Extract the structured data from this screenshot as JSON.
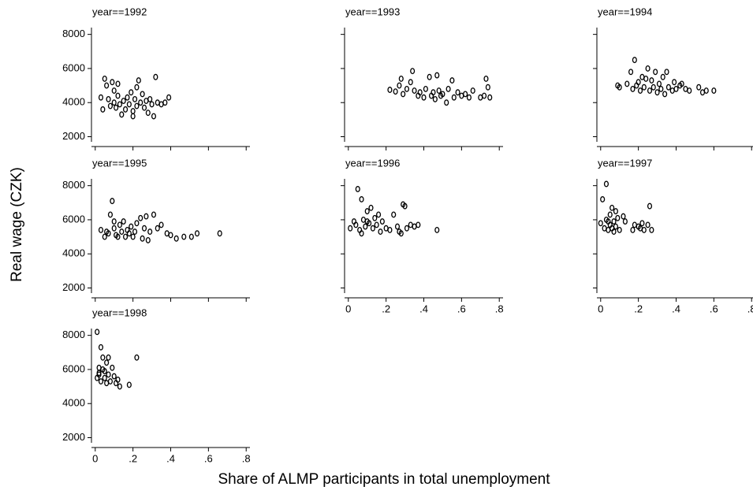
{
  "ylabel": "Real wage (CZK)",
  "xlabel": "Share of ALMP participants in total unemployment",
  "chart_data": [
    {
      "type": "scatter",
      "title": "year==1992",
      "xlim": [
        -0.02,
        0.82
      ],
      "ylim": [
        1700,
        8400
      ],
      "yticks": [
        2000,
        4000,
        6000,
        8000
      ],
      "x": [
        0.03,
        0.04,
        0.05,
        0.06,
        0.07,
        0.08,
        0.09,
        0.1,
        0.1,
        0.11,
        0.12,
        0.13,
        0.14,
        0.15,
        0.16,
        0.17,
        0.18,
        0.19,
        0.2,
        0.21,
        0.22,
        0.23,
        0.24,
        0.25,
        0.26,
        0.27,
        0.28,
        0.29,
        0.3,
        0.31,
        0.32,
        0.33,
        0.35,
        0.37,
        0.39,
        0.12,
        0.2,
        0.22
      ],
      "y": [
        4300,
        3600,
        5400,
        5000,
        4200,
        3800,
        5200,
        4700,
        4000,
        3700,
        4400,
        3900,
        3300,
        4100,
        3600,
        4300,
        3900,
        4600,
        3500,
        4200,
        3800,
        5300,
        4000,
        4500,
        3700,
        4100,
        3400,
        4200,
        3900,
        3200,
        5500,
        4000,
        3900,
        4000,
        4300,
        5100,
        3200,
        4900
      ]
    },
    {
      "type": "scatter",
      "title": "year==1993",
      "xlim": [
        -0.02,
        0.82
      ],
      "ylim": [
        1700,
        8400
      ],
      "x": [
        0.22,
        0.25,
        0.27,
        0.28,
        0.29,
        0.31,
        0.33,
        0.34,
        0.35,
        0.37,
        0.38,
        0.4,
        0.41,
        0.43,
        0.44,
        0.45,
        0.46,
        0.47,
        0.48,
        0.49,
        0.5,
        0.52,
        0.53,
        0.55,
        0.56,
        0.58,
        0.6,
        0.62,
        0.64,
        0.66,
        0.7,
        0.72,
        0.73,
        0.74,
        0.75
      ],
      "y": [
        4750,
        4650,
        5000,
        5400,
        4500,
        4800,
        5200,
        5850,
        4700,
        4400,
        4600,
        4300,
        4800,
        5500,
        4400,
        4600,
        4200,
        5600,
        4700,
        4400,
        4500,
        4000,
        4800,
        5300,
        4300,
        4600,
        4400,
        4500,
        4300,
        4700,
        4300,
        4400,
        5400,
        4900,
        4300
      ]
    },
    {
      "type": "scatter",
      "title": "year==1994",
      "xlim": [
        -0.02,
        0.82
      ],
      "ylim": [
        1700,
        8400
      ],
      "x": [
        0.09,
        0.1,
        0.14,
        0.16,
        0.17,
        0.18,
        0.19,
        0.2,
        0.21,
        0.22,
        0.23,
        0.24,
        0.25,
        0.26,
        0.27,
        0.28,
        0.29,
        0.3,
        0.31,
        0.32,
        0.33,
        0.34,
        0.35,
        0.36,
        0.38,
        0.39,
        0.4,
        0.42,
        0.43,
        0.45,
        0.47,
        0.52,
        0.54,
        0.56,
        0.6
      ],
      "y": [
        5000,
        4900,
        5100,
        5800,
        4800,
        6500,
        5000,
        5200,
        4700,
        5500,
        4900,
        5400,
        6000,
        4700,
        5300,
        4900,
        5800,
        4600,
        5100,
        4800,
        5500,
        4500,
        5800,
        4900,
        4700,
        5200,
        4800,
        5000,
        5100,
        4800,
        4700,
        4900,
        4600,
        4700,
        4700
      ]
    },
    {
      "type": "scatter",
      "title": "year==1995",
      "xlim": [
        -0.02,
        0.82
      ],
      "ylim": [
        1700,
        8400
      ],
      "yticks": [
        2000,
        4000,
        6000,
        8000
      ],
      "x": [
        0.03,
        0.05,
        0.07,
        0.08,
        0.09,
        0.1,
        0.1,
        0.11,
        0.12,
        0.13,
        0.14,
        0.15,
        0.16,
        0.17,
        0.18,
        0.19,
        0.2,
        0.21,
        0.24,
        0.25,
        0.26,
        0.27,
        0.28,
        0.29,
        0.31,
        0.33,
        0.35,
        0.38,
        0.4,
        0.43,
        0.47,
        0.51,
        0.54,
        0.66,
        0.22,
        0.06
      ],
      "y": [
        5400,
        5000,
        5200,
        6300,
        7100,
        5500,
        5900,
        5100,
        5000,
        5700,
        5300,
        5900,
        5000,
        5400,
        5200,
        5600,
        5000,
        5300,
        6100,
        4900,
        5500,
        6200,
        4800,
        5300,
        6300,
        5500,
        5700,
        5200,
        5100,
        4900,
        5000,
        5000,
        5200,
        5200,
        5800,
        5300
      ]
    },
    {
      "type": "scatter",
      "title": "year==1996",
      "xlim": [
        -0.02,
        0.82
      ],
      "ylim": [
        1700,
        8400
      ],
      "xticks": [
        0,
        {
          "value": 0.2,
          "label": ".2"
        },
        {
          "value": 0.4,
          "label": ".4"
        },
        {
          "value": 0.6,
          "label": ".6"
        },
        {
          "value": 0.8,
          "label": ".8"
        }
      ],
      "x": [
        0.01,
        0.03,
        0.04,
        0.05,
        0.06,
        0.07,
        0.08,
        0.09,
        0.1,
        0.11,
        0.12,
        0.13,
        0.14,
        0.15,
        0.16,
        0.17,
        0.18,
        0.2,
        0.22,
        0.24,
        0.26,
        0.27,
        0.28,
        0.29,
        0.3,
        0.31,
        0.33,
        0.35,
        0.37,
        0.47,
        0.07,
        0.1
      ],
      "y": [
        5500,
        5900,
        5700,
        7800,
        5400,
        7200,
        6000,
        5600,
        6500,
        5800,
        6700,
        5500,
        6100,
        5700,
        6300,
        5300,
        5900,
        5500,
        5400,
        6300,
        5600,
        5300,
        5200,
        6900,
        6800,
        5500,
        5700,
        5600,
        5700,
        5400,
        5200,
        5900
      ]
    },
    {
      "type": "scatter",
      "title": "year==1997",
      "xlim": [
        -0.02,
        0.82
      ],
      "ylim": [
        1700,
        8400
      ],
      "xticks": [
        0,
        {
          "value": 0.2,
          "label": ".2"
        },
        {
          "value": 0.4,
          "label": ".4"
        },
        {
          "value": 0.6,
          "label": ".6"
        },
        {
          "value": 0.8,
          "label": ".8"
        }
      ],
      "x": [
        0,
        0.01,
        0.02,
        0.03,
        0.03,
        0.04,
        0.05,
        0.05,
        0.06,
        0.07,
        0.07,
        0.08,
        0.08,
        0.09,
        0.1,
        0.12,
        0.13,
        0.17,
        0.18,
        0.2,
        0.21,
        0.22,
        0.23,
        0.25,
        0.26,
        0.27,
        0.04,
        0.06
      ],
      "y": [
        5800,
        7200,
        5500,
        8100,
        6000,
        5400,
        6300,
        5700,
        6700,
        5900,
        5300,
        6500,
        5600,
        6100,
        5400,
        6200,
        5900,
        5400,
        5700,
        5600,
        5500,
        5800,
        5400,
        5700,
        6800,
        5400,
        5900,
        5500
      ]
    },
    {
      "type": "scatter",
      "title": "year==1998",
      "xlim": [
        -0.02,
        0.82
      ],
      "ylim": [
        1700,
        8400
      ],
      "yticks": [
        2000,
        4000,
        6000,
        8000
      ],
      "xticks": [
        0,
        {
          "value": 0.2,
          "label": ".2"
        },
        {
          "value": 0.4,
          "label": ".4"
        },
        {
          "value": 0.6,
          "label": ".6"
        },
        {
          "value": 0.8,
          "label": ".8"
        }
      ],
      "x": [
        0.01,
        0.01,
        0.02,
        0.02,
        0.03,
        0.03,
        0.04,
        0.04,
        0.05,
        0.06,
        0.06,
        0.07,
        0.07,
        0.08,
        0.09,
        0.1,
        0.11,
        0.12,
        0.13,
        0.18,
        0.22,
        0.02,
        0.05
      ],
      "y": [
        8200,
        5500,
        6100,
        5800,
        7300,
        5300,
        6700,
        6000,
        5500,
        6400,
        5200,
        6700,
        5700,
        5300,
        6100,
        5600,
        5200,
        5400,
        5000,
        5100,
        6700,
        5700,
        5900
      ]
    }
  ]
}
